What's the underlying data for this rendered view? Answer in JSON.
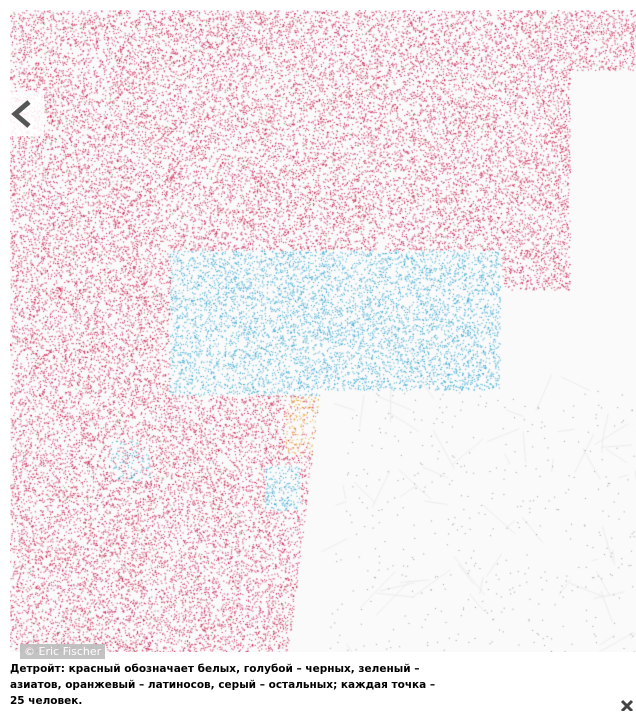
{
  "slide": {
    "credit": "© Eric Fischer",
    "caption": "Детройт: красный обозначает белых, голубой – черных, зеленый – азиатов, оранжевый – латиносов, серый – остальных; каждая точка – 25 человек.",
    "prev_icon": "chevron-left-icon",
    "close_icon": "close-icon"
  },
  "legend_colors": {
    "white": "#c8194a",
    "black": "#29a3cf",
    "asian": "#3a9a3a",
    "latino": "#e59a1e",
    "other": "#9a9a9a"
  }
}
